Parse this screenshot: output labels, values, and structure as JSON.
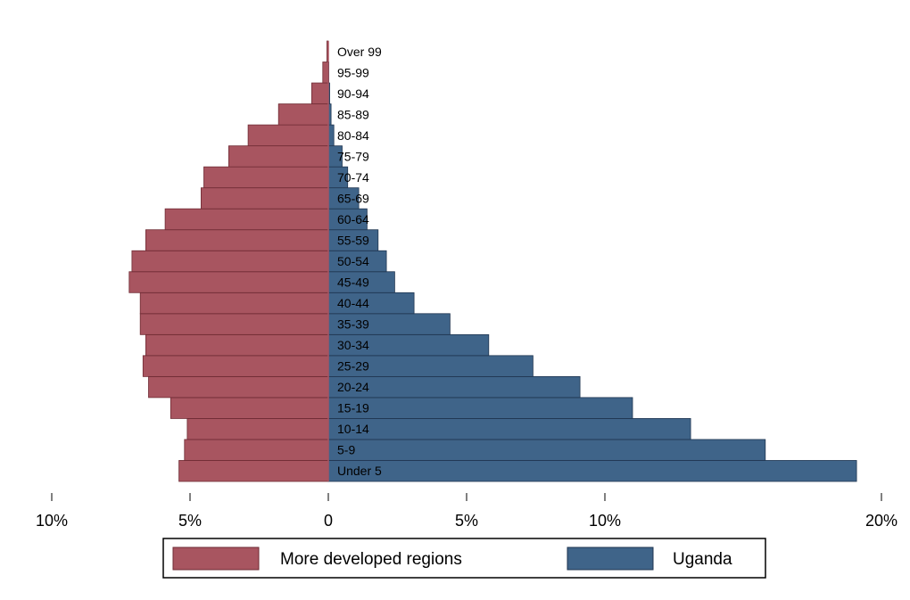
{
  "chart_data": {
    "type": "bar",
    "orientation": "horizontal-diverging",
    "categories": [
      "Under 5",
      "5-9",
      "10-14",
      "15-19",
      "20-24",
      "25-29",
      "30-34",
      "35-39",
      "40-44",
      "45-49",
      "50-54",
      "55-59",
      "60-64",
      "65-69",
      "70-74",
      "75-79",
      "80-84",
      "85-89",
      "90-94",
      "95-99",
      "Over 99"
    ],
    "series": [
      {
        "name": "More developed regions",
        "side": "left",
        "color": "#a85560",
        "values": [
          5.4,
          5.2,
          5.1,
          5.7,
          6.5,
          6.7,
          6.6,
          6.8,
          6.8,
          7.2,
          7.1,
          6.6,
          5.9,
          4.6,
          4.5,
          3.6,
          2.9,
          1.8,
          0.6,
          0.2,
          0.05
        ]
      },
      {
        "name": "Uganda",
        "side": "right",
        "color": "#3f6489",
        "values": [
          19.1,
          15.8,
          13.1,
          11.0,
          9.1,
          7.4,
          5.8,
          4.4,
          3.1,
          2.4,
          2.1,
          1.8,
          1.4,
          1.1,
          0.7,
          0.5,
          0.2,
          0.1,
          0.05,
          0.02,
          0.0
        ]
      }
    ],
    "xaxis": {
      "ticks": [
        -10,
        -5,
        0,
        5,
        10,
        20
      ],
      "tick_labels": [
        "10%",
        "5%",
        "0",
        "5%",
        "10%",
        "20%"
      ],
      "range": [
        -10,
        20
      ]
    },
    "legend": {
      "position": "bottom",
      "items": [
        "More developed regions",
        "Uganda"
      ]
    },
    "grid": false
  }
}
